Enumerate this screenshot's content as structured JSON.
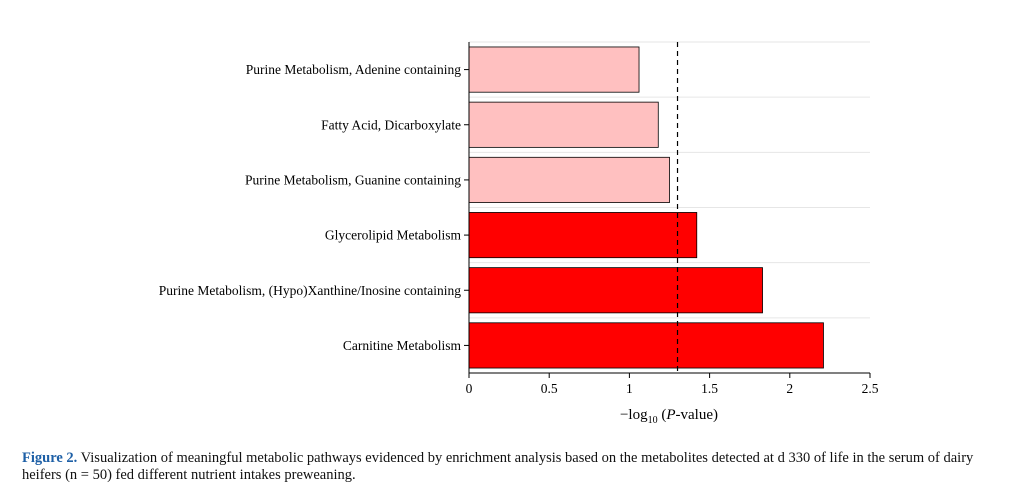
{
  "chart_data": {
    "type": "bar",
    "orientation": "horizontal",
    "categories": [
      "Purine Metabolism, Adenine containing",
      "Fatty Acid, Dicarboxylate",
      "Purine Metabolism, Guanine containing",
      "Glycerolipid Metabolism",
      "Purine Metabolism, (Hypo)Xanthine/Inosine containing",
      "Carnitine Metabolism"
    ],
    "values": [
      1.06,
      1.18,
      1.25,
      1.42,
      1.83,
      2.21
    ],
    "bar_colors": [
      "#ffc0c0",
      "#ffc0c0",
      "#ffc0c0",
      "#ff0000",
      "#ff0000",
      "#ff0000"
    ],
    "threshold_line": {
      "x": 1.3,
      "style": "dashed"
    },
    "xlim": [
      0,
      2.5
    ],
    "xticks": [
      0,
      0.5,
      1,
      1.5,
      2,
      2.5
    ],
    "xtick_labels": [
      "0",
      "0.5",
      "1",
      "1.5",
      "2",
      "2.5"
    ],
    "xlabel_prefix": "−log",
    "xlabel_sub": "10",
    "xlabel_italic": "P",
    "xlabel_suffix": "-value)",
    "xlabel_paren": " (",
    "grid": "horizontal-light"
  },
  "caption": {
    "label": "Figure 2.",
    "text": " Visualization of meaningful metabolic pathways evidenced by enrichment analysis based on the metabolites detected at d 330 of life in the serum of dairy heifers (n = 50) fed different nutrient intakes preweaning."
  }
}
